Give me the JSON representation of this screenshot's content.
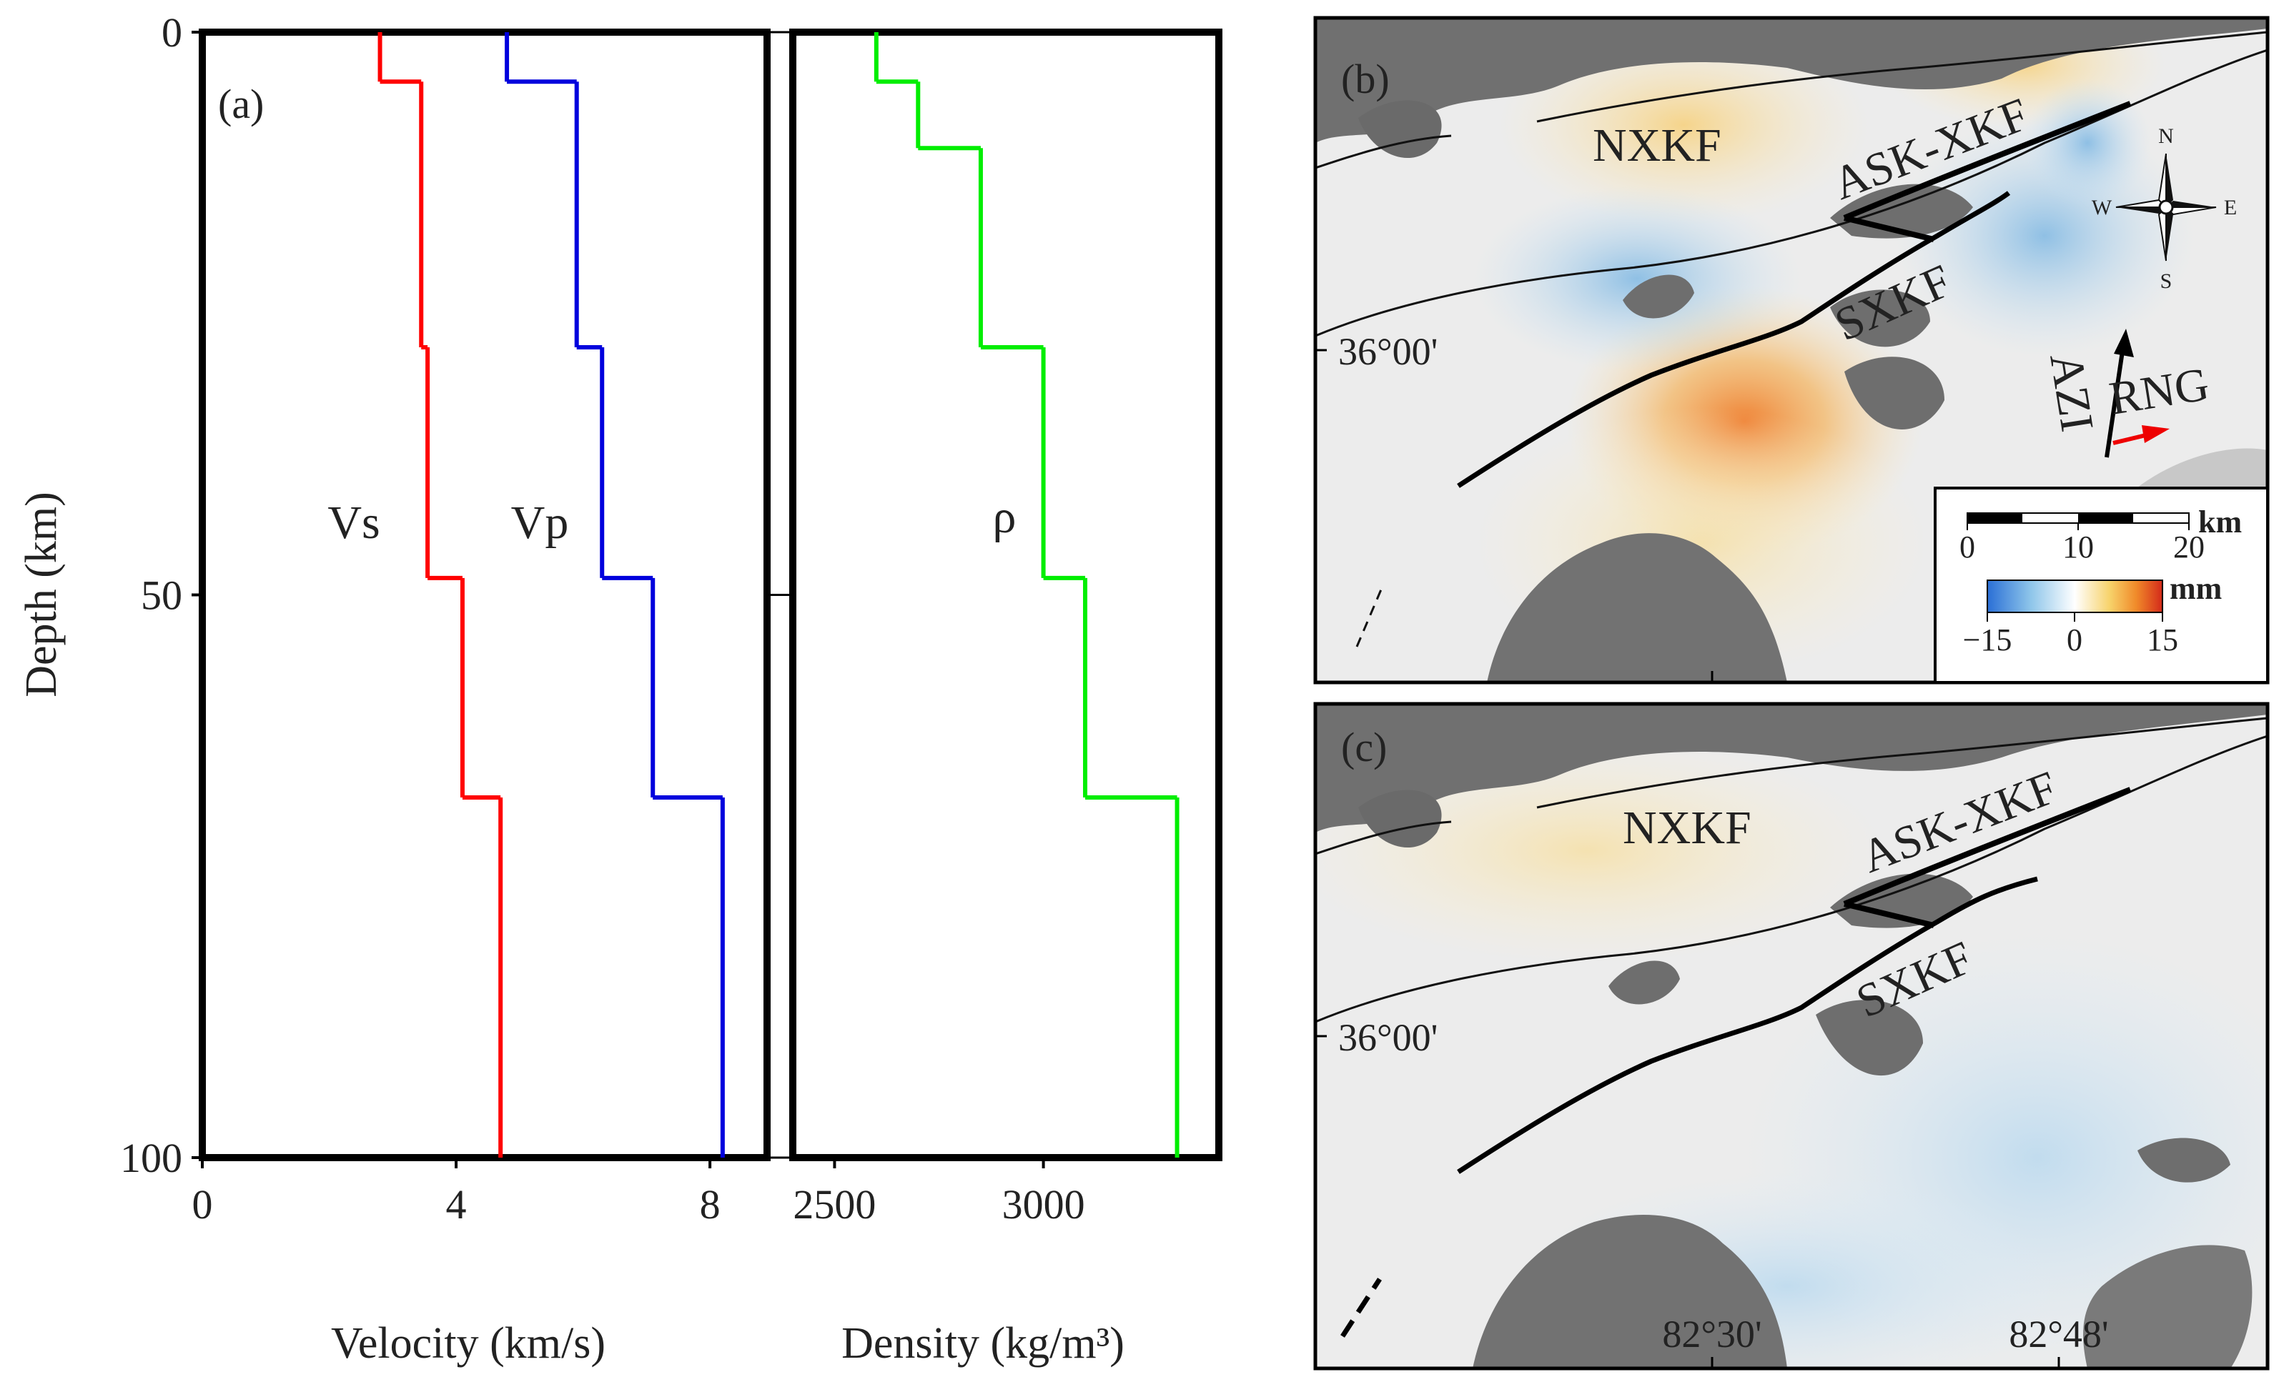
{
  "chart_data": {
    "type": "line",
    "panel_a": {
      "label": "(a)",
      "ylabel": "Depth  (km)",
      "yticks": [
        0,
        50,
        100
      ],
      "ylim": [
        0,
        100
      ],
      "velocity": {
        "xlabel": "Velocity (km/s)",
        "xticks": [
          0,
          4,
          8
        ],
        "xlim": [
          0,
          8.9
        ],
        "series": [
          {
            "name": "Vs",
            "color": "#ff0000",
            "layers": [
              {
                "top": 0,
                "bottom": 4.4,
                "value": 2.8
              },
              {
                "top": 4.4,
                "bottom": 28,
                "value": 3.45
              },
              {
                "top": 28,
                "bottom": 48.5,
                "value": 3.55
              },
              {
                "top": 48.5,
                "bottom": 68,
                "value": 4.1
              },
              {
                "top": 68,
                "bottom": 100,
                "value": 4.7
              }
            ]
          },
          {
            "name": "Vp",
            "color": "#0000dd",
            "layers": [
              {
                "top": 0,
                "bottom": 4.4,
                "value": 4.8
              },
              {
                "top": 4.4,
                "bottom": 28,
                "value": 5.9
              },
              {
                "top": 28,
                "bottom": 48.5,
                "value": 6.3
              },
              {
                "top": 48.5,
                "bottom": 68,
                "value": 7.1
              },
              {
                "top": 68,
                "bottom": 100,
                "value": 8.2
              }
            ]
          }
        ]
      },
      "density": {
        "xlabel": "Density (kg/m³)",
        "xticks": [
          2500,
          3000
        ],
        "xlim": [
          2400,
          3420
        ],
        "series": [
          {
            "name": "ρ",
            "color": "#00ee00",
            "layers": [
              {
                "top": 0,
                "bottom": 4.4,
                "value": 2600
              },
              {
                "top": 4.4,
                "bottom": 10.3,
                "value": 2700
              },
              {
                "top": 10.3,
                "bottom": 28,
                "value": 2850
              },
              {
                "top": 28,
                "bottom": 48.5,
                "value": 3000
              },
              {
                "top": 48.5,
                "bottom": 68,
                "value": 3100
              },
              {
                "top": 68,
                "bottom": 100,
                "value": 3320
              }
            ]
          }
        ]
      }
    },
    "maps": {
      "panel_b_label": "(b)",
      "panel_c_label": "(c)",
      "faults": [
        "NXKF",
        "ASK-XKF",
        "SXKF"
      ],
      "lat_label": "36°00'",
      "lon_labels": [
        "82°30'",
        "82°48'"
      ],
      "compass": {
        "n": "N",
        "s": "S",
        "e": "E",
        "w": "W"
      },
      "look_labels": {
        "azi": "AZI",
        "rng": "RNG"
      },
      "scalebar": {
        "unit": "km",
        "ticks": [
          "0",
          "10",
          "20"
        ]
      },
      "colorbar": {
        "unit": "mm",
        "min": -15,
        "max": 15,
        "ticks": [
          "−15",
          "0",
          "15"
        ]
      }
    }
  }
}
